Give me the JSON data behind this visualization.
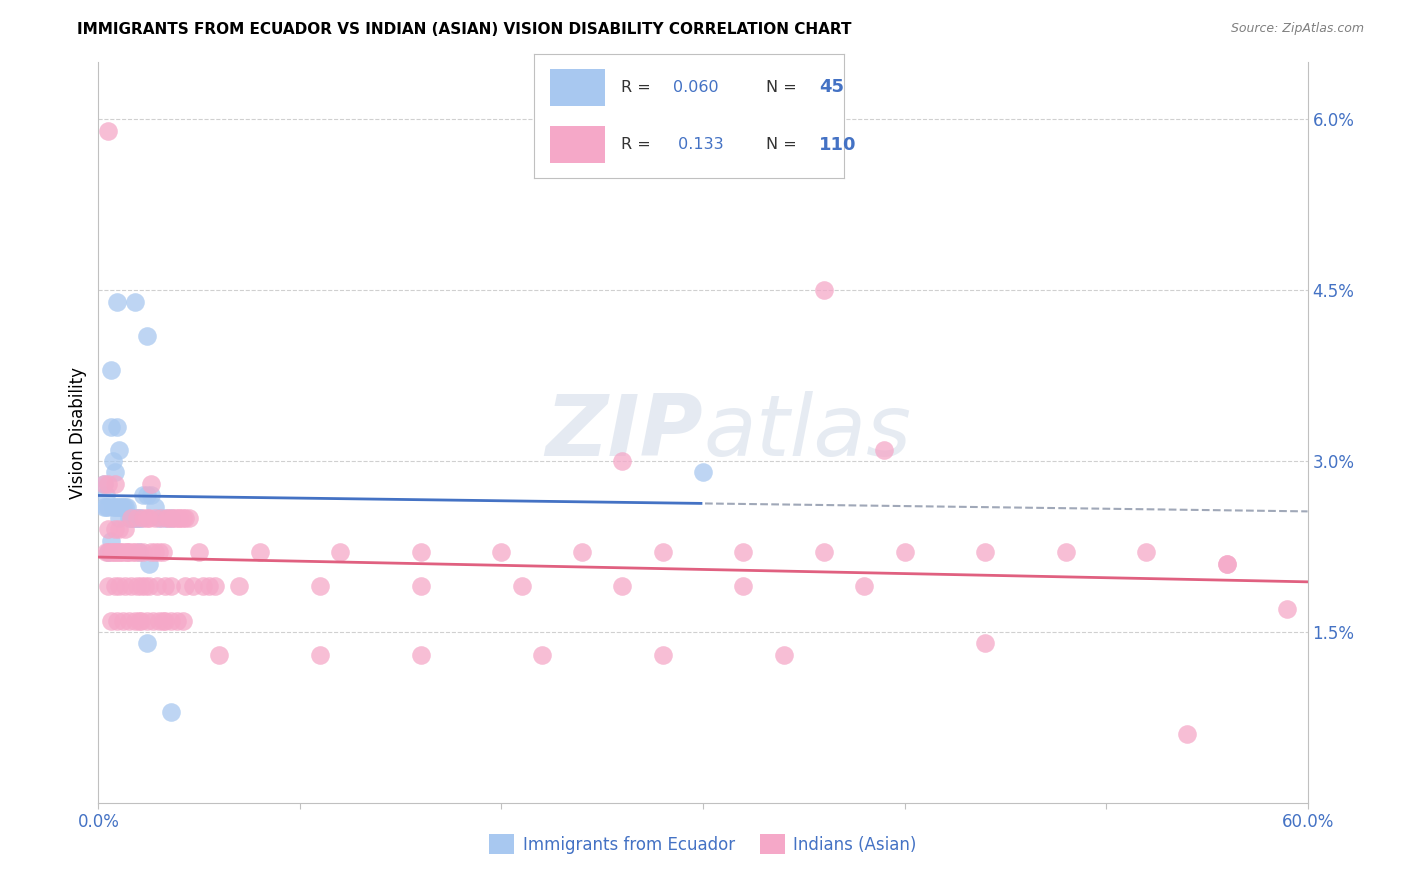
{
  "title": "IMMIGRANTS FROM ECUADOR VS INDIAN (ASIAN) VISION DISABILITY CORRELATION CHART",
  "source": "Source: ZipAtlas.com",
  "ylabel": "Vision Disability",
  "xlim": [
    0.0,
    0.6
  ],
  "ylim": [
    0.0,
    0.065
  ],
  "watermark_zip": "ZIP",
  "watermark_atlas": "atlas",
  "color_blue": "#A8C8F0",
  "color_pink": "#F5A8C8",
  "color_blue_text": "#4472C4",
  "line_blue": "#4472C4",
  "line_pink": "#E06080",
  "line_dashed": "#A0A8B8",
  "ecuador_x": [
    0.003,
    0.004,
    0.005,
    0.005,
    0.006,
    0.007,
    0.007,
    0.008,
    0.009,
    0.01,
    0.01,
    0.011,
    0.012,
    0.013,
    0.014,
    0.015,
    0.016,
    0.017,
    0.018,
    0.019,
    0.02,
    0.021,
    0.022,
    0.024,
    0.026,
    0.028,
    0.03,
    0.033,
    0.036,
    0.009,
    0.018,
    0.006,
    0.024,
    0.006,
    0.009,
    0.02,
    0.025,
    0.008,
    0.3,
    0.003,
    0.004,
    0.024,
    0.036,
    0.01
  ],
  "ecuador_y": [
    0.026,
    0.026,
    0.026,
    0.022,
    0.023,
    0.026,
    0.03,
    0.026,
    0.026,
    0.025,
    0.026,
    0.026,
    0.026,
    0.026,
    0.026,
    0.025,
    0.025,
    0.025,
    0.025,
    0.025,
    0.025,
    0.025,
    0.027,
    0.027,
    0.027,
    0.026,
    0.025,
    0.025,
    0.025,
    0.044,
    0.044,
    0.038,
    0.041,
    0.033,
    0.033,
    0.022,
    0.021,
    0.029,
    0.029,
    0.028,
    0.027,
    0.014,
    0.008,
    0.031
  ],
  "indian_x": [
    0.003,
    0.004,
    0.005,
    0.005,
    0.006,
    0.007,
    0.008,
    0.008,
    0.009,
    0.01,
    0.01,
    0.011,
    0.012,
    0.013,
    0.014,
    0.015,
    0.016,
    0.017,
    0.018,
    0.019,
    0.02,
    0.021,
    0.022,
    0.023,
    0.024,
    0.025,
    0.026,
    0.028,
    0.029,
    0.03,
    0.032,
    0.033,
    0.035,
    0.036,
    0.038,
    0.04,
    0.042,
    0.043,
    0.045,
    0.047,
    0.05,
    0.052,
    0.055,
    0.058,
    0.005,
    0.008,
    0.01,
    0.013,
    0.016,
    0.019,
    0.022,
    0.025,
    0.028,
    0.031,
    0.034,
    0.037,
    0.04,
    0.043,
    0.006,
    0.009,
    0.012,
    0.015,
    0.018,
    0.021,
    0.024,
    0.027,
    0.03,
    0.033,
    0.036,
    0.039,
    0.042,
    0.08,
    0.12,
    0.16,
    0.2,
    0.24,
    0.28,
    0.32,
    0.36,
    0.4,
    0.44,
    0.48,
    0.52,
    0.56,
    0.07,
    0.11,
    0.16,
    0.21,
    0.26,
    0.32,
    0.38,
    0.26,
    0.39,
    0.06,
    0.11,
    0.16,
    0.22,
    0.28,
    0.34,
    0.56,
    0.59,
    0.44,
    0.54,
    0.36,
    0.005,
    0.008,
    0.014,
    0.02,
    0.026,
    0.032,
    0.005
  ],
  "indian_y": [
    0.028,
    0.022,
    0.022,
    0.019,
    0.022,
    0.022,
    0.022,
    0.019,
    0.022,
    0.022,
    0.019,
    0.022,
    0.022,
    0.019,
    0.022,
    0.022,
    0.019,
    0.022,
    0.022,
    0.019,
    0.022,
    0.019,
    0.022,
    0.019,
    0.025,
    0.019,
    0.022,
    0.022,
    0.019,
    0.022,
    0.022,
    0.019,
    0.025,
    0.019,
    0.025,
    0.025,
    0.025,
    0.019,
    0.025,
    0.019,
    0.022,
    0.019,
    0.019,
    0.019,
    0.024,
    0.024,
    0.024,
    0.024,
    0.025,
    0.025,
    0.025,
    0.025,
    0.025,
    0.025,
    0.025,
    0.025,
    0.025,
    0.025,
    0.016,
    0.016,
    0.016,
    0.016,
    0.016,
    0.016,
    0.016,
    0.016,
    0.016,
    0.016,
    0.016,
    0.016,
    0.016,
    0.022,
    0.022,
    0.022,
    0.022,
    0.022,
    0.022,
    0.022,
    0.022,
    0.022,
    0.022,
    0.022,
    0.022,
    0.021,
    0.019,
    0.019,
    0.019,
    0.019,
    0.019,
    0.019,
    0.019,
    0.03,
    0.031,
    0.013,
    0.013,
    0.013,
    0.013,
    0.013,
    0.013,
    0.021,
    0.017,
    0.014,
    0.006,
    0.045,
    0.059,
    0.028,
    0.022,
    0.016,
    0.028,
    0.016,
    0.028
  ]
}
